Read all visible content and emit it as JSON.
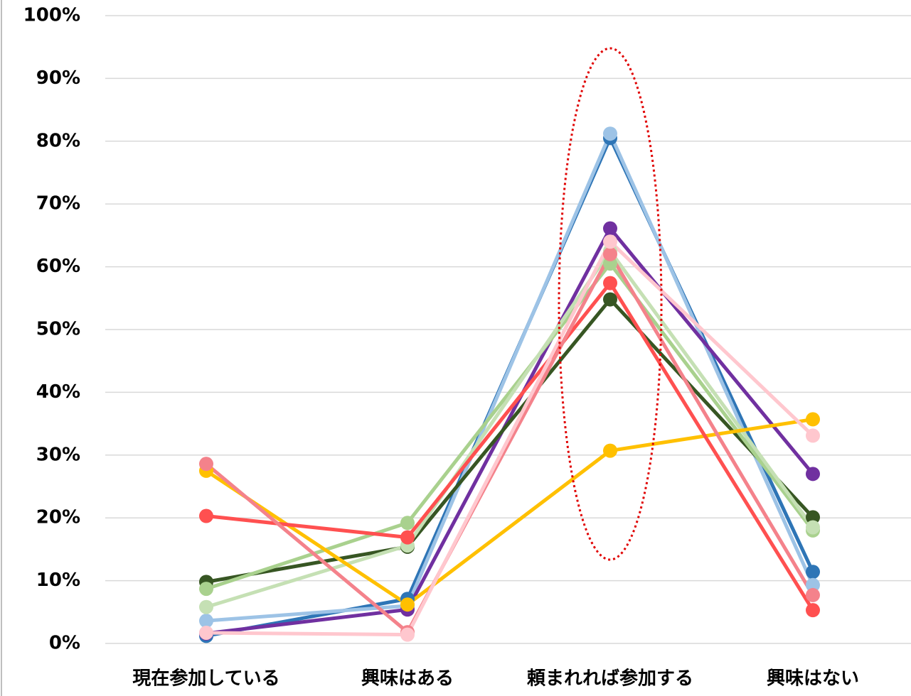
{
  "chart_data": {
    "type": "line",
    "categories": [
      "現在参加している",
      "興味はある",
      "頼まれれば参加する",
      "興味はない"
    ],
    "series": [
      {
        "color": "#2e75b6",
        "values": [
          1.2,
          7.1,
          80.5,
          11.4
        ]
      },
      {
        "color": "#9dc3e6",
        "values": [
          3.6,
          6.0,
          81.2,
          9.3
        ]
      },
      {
        "color": "#7030a0",
        "values": [
          1.6,
          5.4,
          66.1,
          27.0
        ]
      },
      {
        "color": "#375623",
        "values": [
          9.8,
          15.4,
          54.8,
          20.1
        ]
      },
      {
        "color": "#a9d18e",
        "values": [
          8.7,
          19.2,
          60.5,
          18.0
        ]
      },
      {
        "color": "#c5e0b4",
        "values": [
          5.8,
          15.6,
          62.5,
          18.5
        ]
      },
      {
        "color": "#ffc000",
        "values": [
          27.5,
          6.2,
          30.7,
          35.7
        ]
      },
      {
        "color": "#ff5050",
        "values": [
          20.3,
          16.9,
          57.4,
          5.3
        ]
      },
      {
        "color": "#f4828b",
        "values": [
          28.6,
          1.8,
          62.0,
          7.7
        ]
      },
      {
        "color": "#ffc7ce",
        "values": [
          1.7,
          1.4,
          64.0,
          33.1
        ]
      }
    ],
    "ylim": [
      0,
      100
    ],
    "yticks": [
      {
        "value": 0,
        "label": "0%"
      },
      {
        "value": 10,
        "label": "10%"
      },
      {
        "value": 20,
        "label": "20%"
      },
      {
        "value": 30,
        "label": "30%"
      },
      {
        "value": 40,
        "label": "40%"
      },
      {
        "value": 50,
        "label": "50%"
      },
      {
        "value": 60,
        "label": "60%"
      },
      {
        "value": 70,
        "label": "70%"
      },
      {
        "value": 80,
        "label": "80%"
      },
      {
        "value": 90,
        "label": "90%"
      },
      {
        "value": 100,
        "label": "100%"
      }
    ],
    "grid": true
  }
}
